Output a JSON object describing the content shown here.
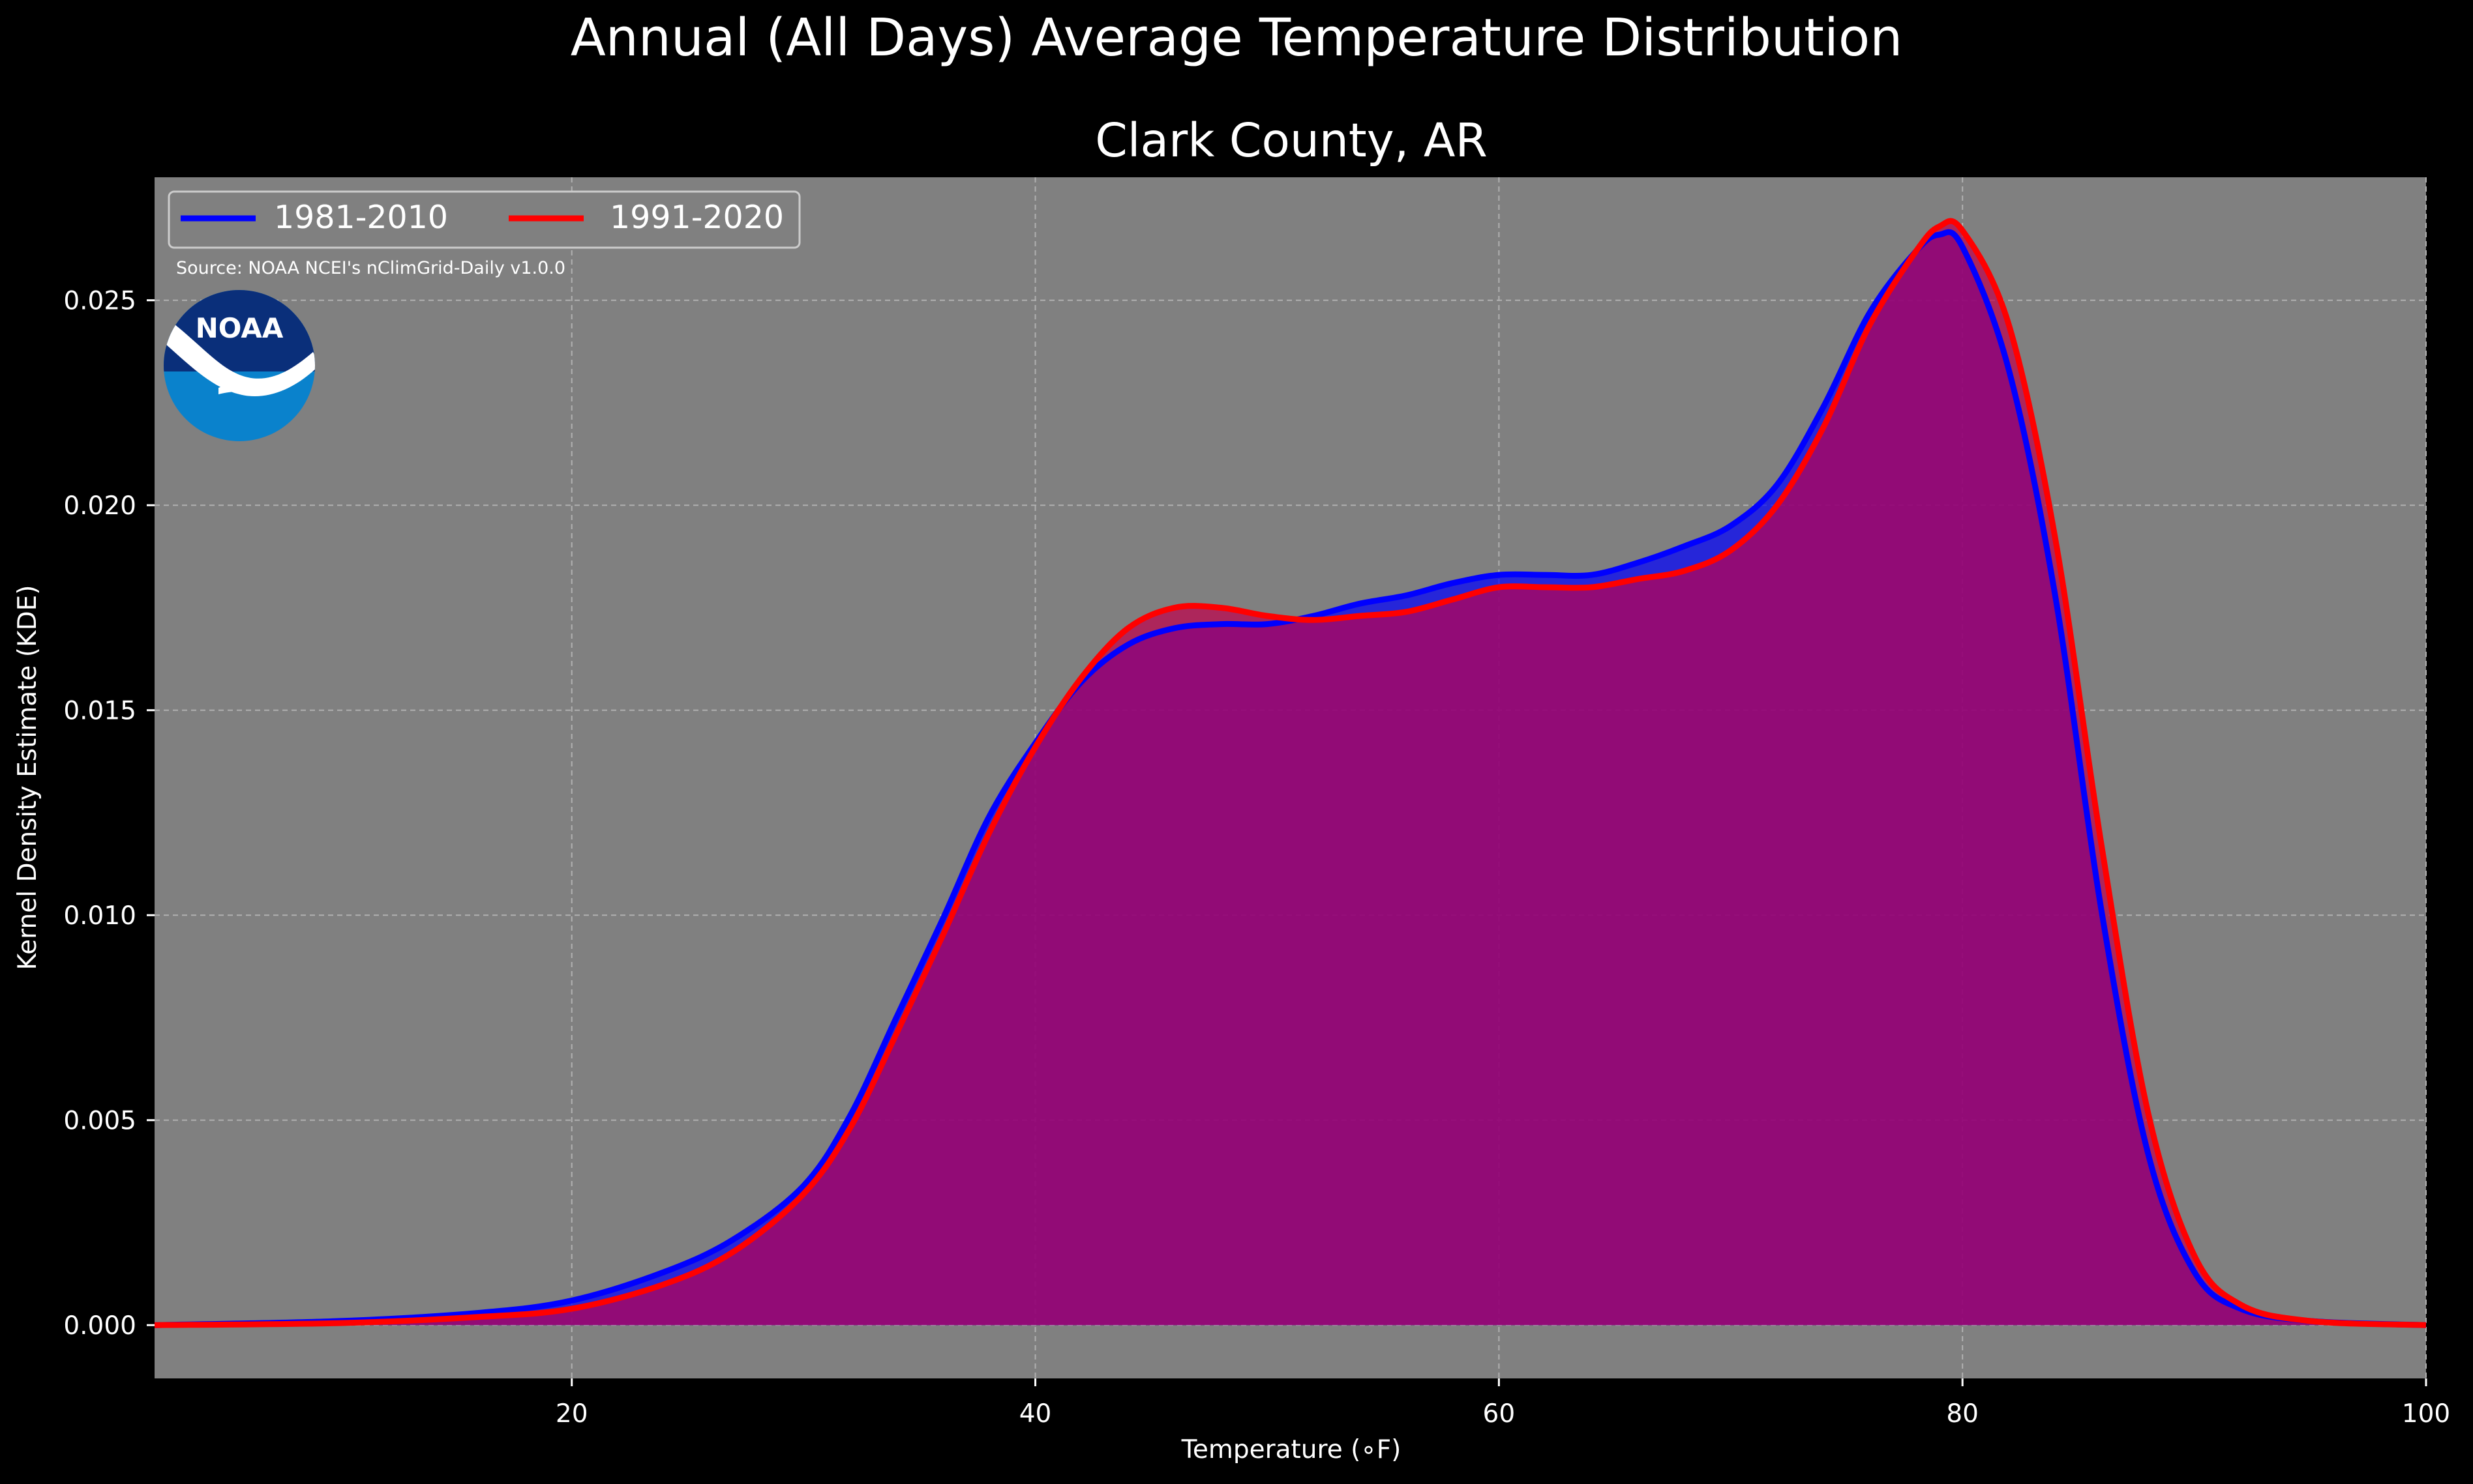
{
  "chart_data": {
    "type": "area",
    "suptitle": "Annual (All Days) Average Temperature Distribution",
    "title": "Clark County, AR",
    "xlabel": "Temperature (∘F)",
    "ylabel": "Kernel Density Estimate (KDE)",
    "xlim": [
      2,
      100
    ],
    "ylim": [
      -0.0013,
      0.028
    ],
    "xticks": [
      20,
      40,
      60,
      80,
      100
    ],
    "yticks": [
      "0.000",
      "0.005",
      "0.010",
      "0.015",
      "0.020",
      "0.025"
    ],
    "grid": true,
    "legend_position": "top-left",
    "source_note": "Source: NOAA NCEI's nClimGrid-Daily v1.0.0",
    "logo_text": "NOAA",
    "colors": {
      "background": "#000000",
      "plot_background": "#808080",
      "series_1981": "#0000ff",
      "series_1991": "#ff0000"
    },
    "series": [
      {
        "name": "1981-2010",
        "color": "#0000ff",
        "fill": "#0000ff",
        "x": [
          2,
          10,
          16,
          20,
          24,
          27,
          30,
          32,
          34,
          36,
          38,
          40,
          42,
          44,
          46,
          48,
          50,
          52,
          54,
          56,
          58,
          60,
          62,
          64,
          66,
          68,
          70,
          72,
          74,
          76,
          78,
          79,
          80,
          82,
          84,
          86,
          88,
          90,
          92,
          95,
          100
        ],
        "values": [
          0.0,
          0.0001,
          0.0003,
          0.0006,
          0.0013,
          0.0021,
          0.0034,
          0.0051,
          0.0075,
          0.0099,
          0.0124,
          0.0142,
          0.0157,
          0.0166,
          0.017,
          0.0171,
          0.0171,
          0.0173,
          0.0176,
          0.0178,
          0.0181,
          0.0183,
          0.0183,
          0.0183,
          0.0186,
          0.019,
          0.0195,
          0.0205,
          0.0224,
          0.0247,
          0.0262,
          0.0266,
          0.0263,
          0.0233,
          0.0178,
          0.0101,
          0.0042,
          0.0013,
          0.0004,
          0.0001,
          0.0
        ]
      },
      {
        "name": "1991-2020",
        "color": "#ff0000",
        "fill": "#c0004b",
        "x": [
          2,
          10,
          16,
          20,
          24,
          27,
          30,
          32,
          34,
          36,
          38,
          40,
          42,
          44,
          46,
          48,
          50,
          52,
          54,
          56,
          58,
          60,
          62,
          64,
          66,
          68,
          70,
          72,
          74,
          76,
          78,
          79,
          80,
          82,
          84,
          86,
          88,
          90,
          92,
          95,
          100
        ],
        "values": [
          0.0,
          5e-05,
          0.0002,
          0.0004,
          0.001,
          0.0018,
          0.0032,
          0.0048,
          0.0071,
          0.0095,
          0.012,
          0.0141,
          0.0158,
          0.017,
          0.0175,
          0.0175,
          0.0173,
          0.0172,
          0.0173,
          0.0174,
          0.0177,
          0.018,
          0.018,
          0.018,
          0.0182,
          0.0184,
          0.0189,
          0.02,
          0.0219,
          0.0244,
          0.0262,
          0.0268,
          0.0267,
          0.0244,
          0.0192,
          0.0117,
          0.0052,
          0.0017,
          0.0005,
          0.0001,
          0.0
        ]
      }
    ]
  }
}
